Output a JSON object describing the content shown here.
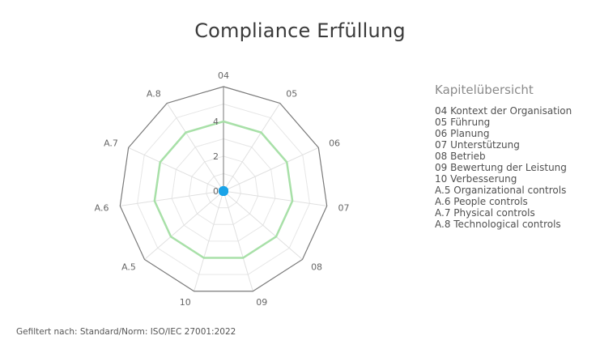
{
  "chart_data": {
    "type": "radar",
    "title": "Compliance Erfüllung",
    "categories": [
      "04",
      "05",
      "06",
      "07",
      "08",
      "09",
      "10",
      "A.5",
      "A.6",
      "A.7",
      "A.8"
    ],
    "series": [
      {
        "values": [
          4,
          4,
          4,
          4,
          4,
          4,
          4,
          4,
          4,
          4,
          4
        ],
        "color": "#a8e0a8"
      },
      {
        "values": [
          0,
          0,
          0,
          0,
          0,
          0,
          0,
          0,
          0,
          0,
          0
        ],
        "color": "#1aa3e8"
      }
    ],
    "rlim": [
      0,
      6
    ],
    "ticks": [
      "0",
      "2",
      "4"
    ],
    "tick_values": [
      0,
      2,
      4
    ],
    "grid_levels": [
      1,
      2,
      3,
      4,
      5
    ],
    "grid": true
  },
  "legend": {
    "title": "Kapitelübersicht",
    "items": [
      "04 Kontext der Organisation",
      "05 Führung",
      "06 Planung",
      "07 Unterstützung",
      "08 Betrieb",
      "09 Bewertung der Leistung",
      "10 Verbesserung",
      "A.5 Organizational controls",
      "A.6 People controls",
      "A.7 Physical controls",
      "A.8 Technological controls"
    ]
  },
  "footer": "Gefiltert nach: Standard/Norm: ISO/IEC 27001:2022"
}
